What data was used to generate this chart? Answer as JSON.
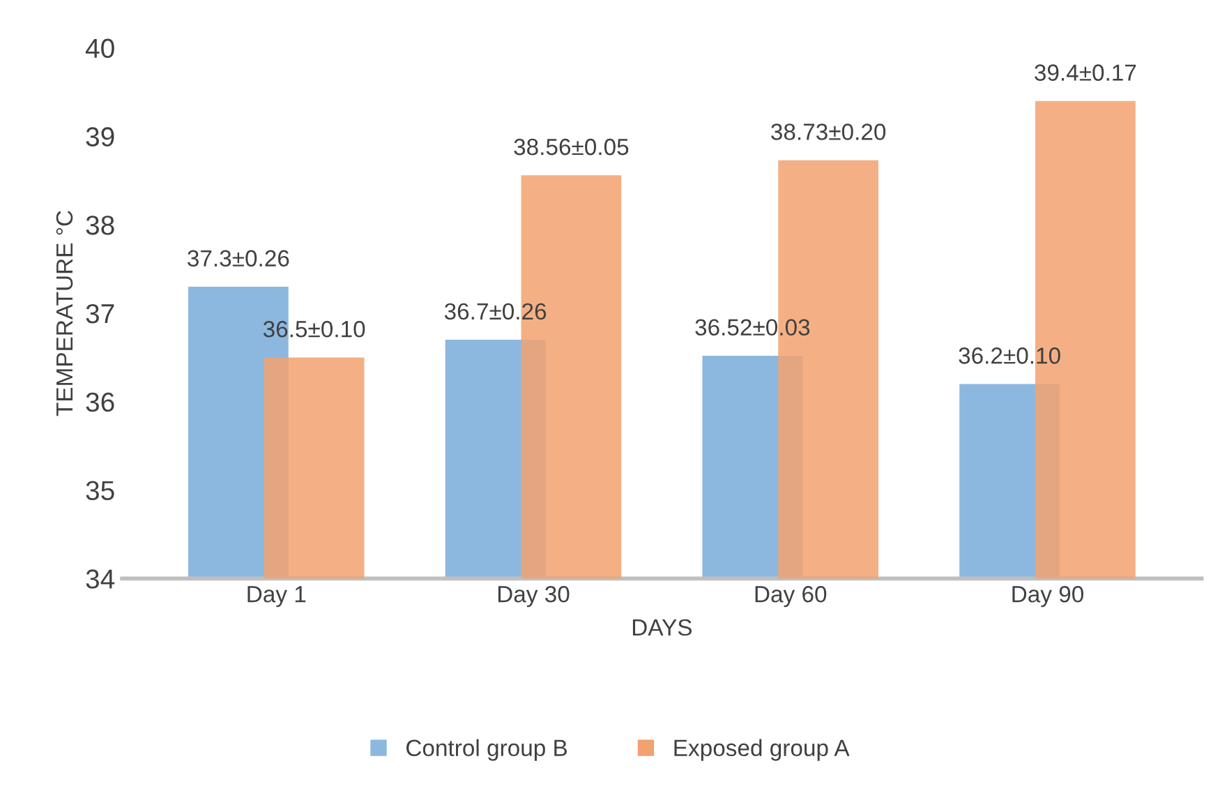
{
  "chart_data": {
    "type": "bar",
    "xlabel": "DAYS",
    "ylabel": "TEMPERATURE °C",
    "categories": [
      "Day 1",
      "Day 30",
      "Day 60",
      "Day 90"
    ],
    "series": [
      {
        "name": "Control group B",
        "color": "#8cb8e0",
        "values": [
          37.3,
          36.7,
          36.52,
          36.2
        ],
        "value_labels": [
          "37.3±0.26",
          "36.7±0.26",
          "36.52±0.03",
          "36.2±0.10"
        ]
      },
      {
        "name": "Exposed group A",
        "color": "#f2a26e",
        "values": [
          36.5,
          38.56,
          38.73,
          39.4
        ],
        "value_labels": [
          "36.5±0.10",
          "38.56±0.05",
          "38.73±0.20",
          "39.4±0.17"
        ]
      }
    ],
    "ylim": [
      34,
      40
    ],
    "yticks": [
      34,
      35,
      36,
      37,
      38,
      39,
      40
    ],
    "grid": false,
    "legend": "bottom"
  }
}
